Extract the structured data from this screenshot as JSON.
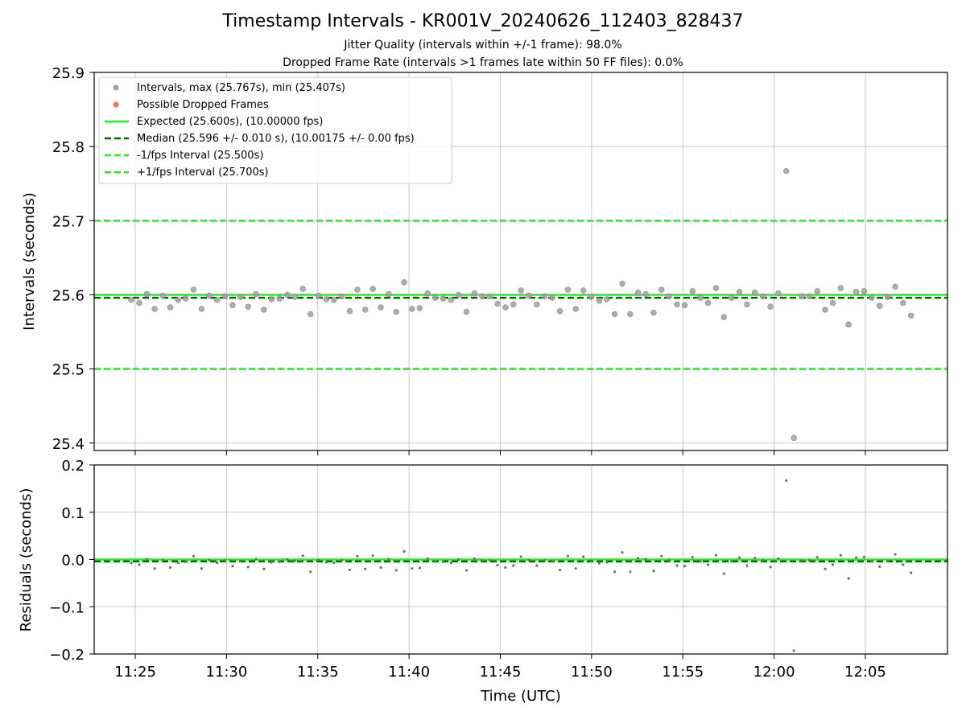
{
  "header": {
    "title": "Timestamp Intervals - KR001V_20240626_112403_828437",
    "subtitle_jitter": "Jitter Quality (intervals within +/-1 frame): 98.0%",
    "subtitle_dropped": "Dropped Frame Rate (intervals >1 frames late within 50 FF files): 0.0%"
  },
  "colors": {
    "points": "#a0a0a0",
    "dropped": "#ff6b6b",
    "expected": "#22ee22",
    "median": "#006400",
    "bounds": "#22ee22",
    "grid": "#c8c8c8",
    "residual_points": "#707070"
  },
  "chart_data": [
    {
      "type": "scatter",
      "ylabel": "Intervals (seconds)",
      "ylim": [
        25.39,
        25.9
      ],
      "yticks": [
        "25.4",
        "25.5",
        "25.6",
        "25.7",
        "25.8",
        "25.9"
      ],
      "grid": true,
      "legend_position": "top-left",
      "legend": [
        "Intervals, max (25.767s), min (25.407s)",
        "Possible Dropped Frames",
        "Expected (25.600s), (10.00000 fps)",
        "Median (25.596 +/- 0.010 s), (10.00175 +/- 0.00 fps)",
        "-1/fps Interval (25.500s)",
        "+1/fps Interval (25.700s)"
      ],
      "lines": {
        "expected": 25.6,
        "median": 25.596,
        "minus_one_fps": 25.5,
        "plus_one_fps": 25.7
      },
      "series": [
        {
          "name": "Intervals, max (25.767s), min (25.407s)",
          "x": [
            "11:24:47",
            "11:25:13",
            "11:25:38",
            "11:26:04",
            "11:26:30",
            "11:26:55",
            "11:27:21",
            "11:27:46",
            "11:28:12",
            "11:28:38",
            "11:29:03",
            "11:29:29",
            "11:29:55",
            "11:30:20",
            "11:30:46",
            "11:31:11",
            "11:31:37",
            "11:32:03",
            "11:32:28",
            "11:32:54",
            "11:33:20",
            "11:33:45",
            "11:34:11",
            "11:34:36",
            "11:35:02",
            "11:35:28",
            "11:35:53",
            "11:36:19",
            "11:36:45",
            "11:37:10",
            "11:37:36",
            "11:38:01",
            "11:38:27",
            "11:38:53",
            "11:39:18",
            "11:39:44",
            "11:40:10",
            "11:40:35",
            "11:41:01",
            "11:41:26",
            "11:41:52",
            "11:42:18",
            "11:42:43",
            "11:43:09",
            "11:43:35",
            "11:44:00",
            "11:44:26",
            "11:44:51",
            "11:45:17",
            "11:45:43",
            "11:46:08",
            "11:46:34",
            "11:47:00",
            "11:47:25",
            "11:47:51",
            "11:48:16",
            "11:48:42",
            "11:49:08",
            "11:49:33",
            "11:49:59",
            "11:50:25",
            "11:50:50",
            "11:51:16",
            "11:51:41",
            "11:52:07",
            "11:52:33",
            "11:52:58",
            "11:53:24",
            "11:53:50",
            "11:54:15",
            "11:54:41",
            "11:55:06",
            "11:55:32",
            "11:55:58",
            "11:56:23",
            "11:56:49",
            "11:57:15",
            "11:57:40",
            "11:58:06",
            "11:58:31",
            "11:58:57",
            "11:59:23",
            "11:59:48",
            "12:00:14",
            "12:00:40",
            "12:01:05",
            "12:01:31",
            "12:01:56",
            "12:02:22",
            "12:02:48",
            "12:03:13",
            "12:03:39",
            "12:04:05",
            "12:04:30",
            "12:04:56",
            "12:05:21",
            "12:05:47",
            "12:06:13",
            "12:06:38",
            "12:07:04",
            "12:07:30"
          ],
          "values": [
            25.593,
            25.589,
            25.601,
            25.581,
            25.599,
            25.583,
            25.593,
            25.595,
            25.607,
            25.581,
            25.599,
            25.593,
            25.598,
            25.586,
            25.597,
            25.584,
            25.601,
            25.58,
            25.594,
            25.595,
            25.6,
            25.597,
            25.608,
            25.574,
            25.599,
            25.594,
            25.593,
            25.598,
            25.578,
            25.607,
            25.58,
            25.608,
            25.583,
            25.601,
            25.577,
            25.617,
            25.581,
            25.582,
            25.602,
            25.596,
            25.595,
            25.593,
            25.6,
            25.577,
            25.602,
            25.598,
            25.598,
            25.588,
            25.583,
            25.587,
            25.606,
            25.599,
            25.587,
            25.598,
            25.596,
            25.578,
            25.607,
            25.581,
            25.606,
            25.597,
            25.592,
            25.594,
            25.574,
            25.615,
            25.574,
            25.603,
            25.601,
            25.576,
            25.607,
            25.598,
            25.587,
            25.586,
            25.605,
            25.596,
            25.589,
            25.609,
            25.57,
            25.596,
            25.604,
            25.587,
            25.603,
            25.598,
            25.584,
            25.602,
            25.767,
            25.407,
            25.598,
            25.598,
            25.605,
            25.58,
            25.589,
            25.609,
            25.56,
            25.604,
            25.605,
            25.596,
            25.585,
            25.597,
            25.611,
            25.589,
            25.572
          ]
        },
        {
          "name": "Possible Dropped Frames",
          "x": [],
          "values": []
        }
      ]
    },
    {
      "type": "scatter",
      "xlabel": "Time (UTC)",
      "ylabel": "Residuals (seconds)",
      "ylim": [
        -0.2,
        0.2
      ],
      "yticks": [
        "0.2",
        "0.1",
        "0.0",
        "−0.1",
        "−0.2"
      ],
      "xticks": [
        "11:25",
        "11:30",
        "11:35",
        "11:40",
        "11:45",
        "11:50",
        "11:55",
        "12:00",
        "12:05"
      ],
      "xlim": [
        "11:22:45",
        "12:09:30"
      ],
      "grid": true,
      "lines": {
        "expected": 0.0,
        "median": -0.004
      },
      "series": [
        {
          "name": "Residuals",
          "x_from": "same as intervals",
          "values": [
            -0.007,
            -0.011,
            0.001,
            -0.019,
            -0.001,
            -0.017,
            -0.007,
            -0.005,
            0.007,
            -0.019,
            -0.001,
            -0.007,
            -0.002,
            -0.014,
            -0.003,
            -0.016,
            0.001,
            -0.02,
            -0.006,
            -0.005,
            0.0,
            -0.003,
            0.008,
            -0.026,
            -0.001,
            -0.006,
            -0.007,
            -0.002,
            -0.022,
            0.007,
            -0.02,
            0.008,
            -0.017,
            0.001,
            -0.023,
            0.017,
            -0.019,
            -0.018,
            0.002,
            -0.004,
            -0.005,
            -0.007,
            0.0,
            -0.023,
            0.002,
            -0.002,
            -0.002,
            -0.012,
            -0.017,
            -0.013,
            0.006,
            -0.001,
            -0.013,
            -0.002,
            -0.004,
            -0.022,
            0.007,
            -0.019,
            0.006,
            -0.003,
            -0.008,
            -0.006,
            -0.026,
            0.015,
            -0.026,
            0.003,
            0.001,
            -0.024,
            0.007,
            -0.002,
            -0.013,
            -0.014,
            0.005,
            -0.004,
            -0.011,
            0.009,
            -0.03,
            -0.004,
            0.004,
            -0.013,
            0.003,
            -0.002,
            -0.016,
            0.002,
            0.167,
            -0.193,
            -0.002,
            -0.002,
            0.005,
            -0.02,
            -0.011,
            0.009,
            -0.04,
            0.004,
            0.005,
            -0.004,
            -0.015,
            -0.003,
            0.011,
            -0.011,
            -0.028
          ]
        }
      ]
    }
  ]
}
